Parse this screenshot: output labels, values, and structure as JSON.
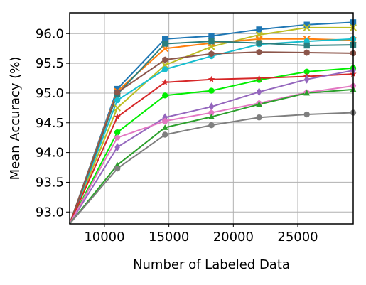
{
  "chart_data": {
    "type": "line",
    "title": "",
    "xlabel": "Number of Labeled Data",
    "ylabel": "Mean Accuracy (%)",
    "xlim": [
      7300,
      29300
    ],
    "ylim": [
      92.8,
      96.35
    ],
    "xticks": [
      10000,
      15000,
      20000,
      25000
    ],
    "xtick_labels": [
      "10000",
      "15000",
      "20000",
      "25000"
    ],
    "yticks": [
      93.0,
      93.5,
      94.0,
      94.5,
      95.0,
      95.5,
      96.0
    ],
    "ytick_labels": [
      "93.0",
      "93.5",
      "94.0",
      "94.5",
      "95.0",
      "95.5",
      "96.0"
    ],
    "grid": true,
    "legend": "none",
    "x": [
      7300,
      11000,
      14700,
      18300,
      22000,
      25700,
      29300
    ],
    "series": [
      {
        "color": "#1f77b4",
        "marker": "square",
        "values": [
          92.8,
          95.07,
          95.91,
          95.96,
          96.07,
          96.15,
          96.19
        ]
      },
      {
        "color": "#bcbd22",
        "marker": "x",
        "values": [
          92.8,
          94.75,
          95.47,
          95.78,
          95.98,
          96.1,
          96.1
        ]
      },
      {
        "color": "#ff7f0e",
        "marker": "x",
        "values": [
          92.8,
          95.03,
          95.75,
          95.84,
          95.91,
          95.91,
          95.89
        ]
      },
      {
        "color": "#17becf",
        "marker": "circle",
        "values": [
          92.8,
          94.88,
          95.4,
          95.62,
          95.82,
          95.87,
          95.91
        ]
      },
      {
        "color": "#2a7f7f",
        "marker": "square",
        "values": [
          92.8,
          94.98,
          95.83,
          95.87,
          95.84,
          95.8,
          95.81
        ]
      },
      {
        "color": "#8c564b",
        "marker": "hexagon",
        "values": [
          92.8,
          95.01,
          95.56,
          95.66,
          95.69,
          95.68,
          95.67
        ]
      },
      {
        "color": "#00ee00",
        "marker": "circle",
        "values": [
          92.8,
          94.34,
          94.96,
          95.04,
          95.22,
          95.36,
          95.42
        ]
      },
      {
        "color": "#d62728",
        "marker": "star",
        "values": [
          92.8,
          94.6,
          95.18,
          95.23,
          95.25,
          95.28,
          95.32
        ]
      },
      {
        "color": "#9467bd",
        "marker": "diamond",
        "values": [
          92.8,
          94.09,
          94.59,
          94.77,
          95.02,
          95.23,
          95.38
        ]
      },
      {
        "color": "#e377c2",
        "marker": "pentagon",
        "values": [
          92.8,
          94.25,
          94.53,
          94.67,
          94.83,
          95.01,
          95.12
        ]
      },
      {
        "color": "#2ca02c",
        "marker": "triangle",
        "values": [
          92.8,
          93.79,
          94.42,
          94.6,
          94.81,
          95.0,
          95.06
        ]
      },
      {
        "color": "#7f7f7f",
        "marker": "circle",
        "values": [
          92.8,
          93.73,
          94.3,
          94.46,
          94.59,
          94.64,
          94.67
        ]
      }
    ]
  }
}
